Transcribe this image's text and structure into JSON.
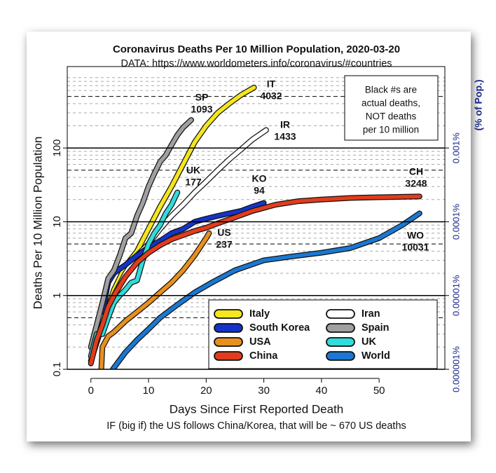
{
  "chart_data": {
    "type": "line",
    "title": "Coronavirus Deaths Per 10 Million Population, 2020-03-20",
    "subtitle": "DATA: https://www.worldometers.info/coronavirus/#countries",
    "x_label": "Days Since First Reported Death",
    "y_label": "Deaths Per 10 Million Population",
    "y2_label": "(% of Pop.)",
    "caption": "IF (big if) the US follows China/Korea, that will be ~ 670 US deaths",
    "note": [
      "Black #s are",
      "actual deaths,",
      "NOT deaths",
      "per 10 million"
    ],
    "log_y": true,
    "grid": true,
    "xlim": [
      -4.1,
      61.4
    ],
    "xticks": [
      0,
      10,
      20,
      30,
      40,
      50
    ],
    "ylim": [
      0.1,
      1270
    ],
    "yticks": [
      0.1,
      1,
      10,
      100
    ],
    "y2lim": [
      1e-06,
      0.0127
    ],
    "y2ticks": [
      {
        "value": 1e-06,
        "label": "0.000001%"
      },
      {
        "value": 1e-05,
        "label": "0.00001%"
      },
      {
        "value": 0.0001,
        "label": "0.0001%"
      },
      {
        "value": 0.001,
        "label": "0.001%"
      }
    ],
    "legend_position": "lower right",
    "series": [
      {
        "name": "Italy",
        "code": "IT",
        "deaths": 4032,
        "color": "#f5e61e",
        "x": [
          0,
          2,
          4,
          6,
          8,
          10,
          12,
          14,
          16,
          18,
          20,
          22,
          24,
          26,
          28.3
        ],
        "values": [
          0.13,
          0.4,
          1.2,
          2.5,
          4,
          8,
          16,
          30,
          60,
          120,
          200,
          300,
          400,
          520,
          660
        ]
      },
      {
        "name": "Iran",
        "code": "IR",
        "deaths": 1433,
        "color": "#ffffff",
        "x": [
          2,
          4,
          6,
          8,
          10,
          12,
          14,
          16,
          18,
          20,
          22,
          24,
          26,
          28,
          30.4
        ],
        "values": [
          0.4,
          1,
          2,
          3.5,
          5,
          8,
          12,
          17,
          25,
          35,
          50,
          70,
          95,
          130,
          175
        ]
      },
      {
        "name": "South Korea",
        "code": "KO",
        "deaths": 94,
        "color": "#1433c8",
        "x": [
          2,
          3,
          4,
          5,
          6,
          8,
          10,
          12,
          14,
          16,
          18,
          20,
          22,
          24,
          26,
          28,
          30
        ],
        "values": [
          0.6,
          1.5,
          2,
          2.3,
          2.6,
          3.5,
          4.5,
          5.5,
          7,
          8,
          10,
          11,
          12,
          13,
          14,
          16,
          18
        ]
      },
      {
        "name": "Spain",
        "code": "SP",
        "deaths": 1093,
        "color": "#a0a0a0",
        "x": [
          0,
          1,
          2,
          3,
          4,
          5,
          6,
          7,
          8,
          9,
          10,
          11,
          12,
          13,
          14,
          15,
          16,
          17.4
        ],
        "values": [
          0.2,
          0.4,
          0.8,
          1.7,
          2.2,
          3.5,
          6,
          7,
          12,
          18,
          30,
          45,
          65,
          80,
          110,
          150,
          190,
          240
        ]
      },
      {
        "name": "USA",
        "code": "US",
        "deaths": 237,
        "color": "#e8901e",
        "x": [
          1.8,
          2,
          3,
          4,
          6,
          8,
          10,
          12,
          14,
          16,
          18,
          20,
          20.5
        ],
        "values": [
          0.1,
          0.2,
          0.28,
          0.32,
          0.45,
          0.6,
          0.8,
          1.1,
          1.5,
          2.2,
          3.5,
          6,
          7
        ]
      },
      {
        "name": "UK",
        "code": "UK",
        "deaths": 177,
        "color": "#30dcdc",
        "x": [
          0,
          1,
          2,
          3,
          4,
          5,
          6,
          7,
          8,
          9,
          10,
          11,
          12,
          13,
          14,
          15
        ],
        "values": [
          0.15,
          0.3,
          0.3,
          0.5,
          0.8,
          1,
          1.2,
          1.5,
          1.6,
          3,
          5,
          7,
          9,
          13,
          17,
          25
        ]
      },
      {
        "name": "China",
        "code": "CH",
        "deaths": 3248,
        "color": "#e23c1c",
        "x": [
          0,
          1,
          2,
          3,
          4,
          6,
          8,
          10,
          12,
          14,
          16,
          18,
          20,
          22,
          25,
          28,
          32,
          36,
          40,
          45,
          50,
          57
        ],
        "values": [
          0.12,
          0.25,
          0.4,
          0.7,
          1,
          1.8,
          2.8,
          3.8,
          4.8,
          5.8,
          6.6,
          7.5,
          8.3,
          9.5,
          11.5,
          14,
          17,
          19,
          20,
          21,
          21.5,
          22
        ]
      },
      {
        "name": "World",
        "code": "WO",
        "deaths": 10031,
        "color": "#1a78d2",
        "x": [
          3.8,
          6,
          8,
          10,
          12,
          15,
          18,
          21,
          25,
          30,
          35,
          40,
          45,
          50,
          54,
          57
        ],
        "values": [
          0.1,
          0.17,
          0.25,
          0.35,
          0.5,
          0.75,
          1.1,
          1.5,
          2.2,
          3,
          3.4,
          3.8,
          4.4,
          6,
          9,
          13
        ]
      }
    ]
  }
}
